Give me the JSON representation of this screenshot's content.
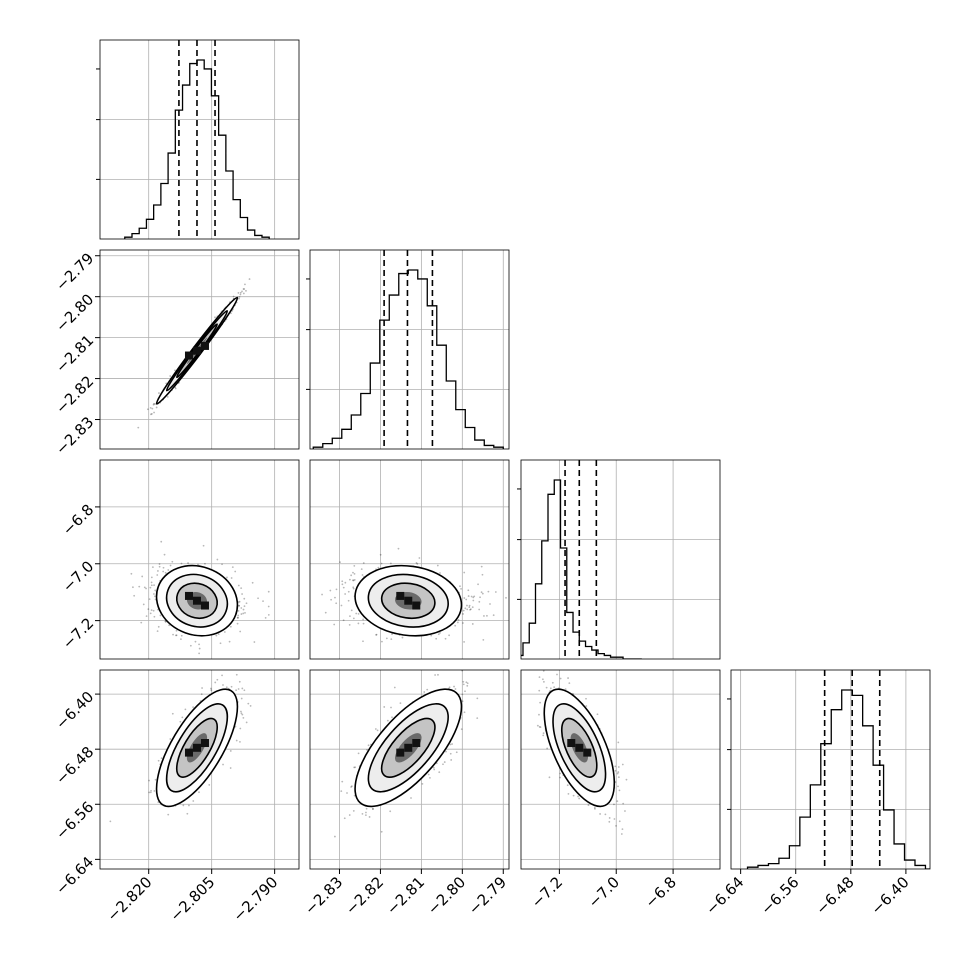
{
  "chart_data": {
    "type": "corner",
    "parameters": [
      {
        "id": "p0",
        "range": [
          -2.8316,
          -2.7842
        ],
        "ticks": [
          -2.82,
          -2.805,
          -2.79
        ],
        "tick_labels": [
          "−2.820",
          "−2.805",
          "−2.790"
        ],
        "quantiles": [
          -2.8128,
          -2.8085,
          -2.8042
        ],
        "mean": -2.8085,
        "sd": 0.0043
      },
      {
        "id": "p1",
        "range": [
          -2.8372,
          -2.7886
        ],
        "ticks": [
          -2.83,
          -2.82,
          -2.81,
          -2.8,
          -2.79
        ],
        "tick_labels": [
          "−2.83",
          "−2.82",
          "−2.81",
          "−2.80",
          "−2.79"
        ],
        "quantiles": [
          -2.8191,
          -2.8134,
          -2.8073
        ],
        "mean": -2.8132,
        "sd": 0.0058
      },
      {
        "id": "p2",
        "range": [
          -7.335,
          -6.635
        ],
        "ticks": [
          -7.2,
          -7.0,
          -6.8
        ],
        "tick_labels": [
          "−7.2",
          "−7.0",
          "−6.8"
        ],
        "quantiles": [
          -7.18,
          -7.13,
          -7.07
        ],
        "mean": -7.13,
        "sd": 0.055
      },
      {
        "id": "p3",
        "range": [
          -6.654,
          -6.365
        ],
        "ticks": [
          -6.64,
          -6.56,
          -6.48,
          -6.4
        ],
        "tick_labels": [
          "−6.64",
          "−6.56",
          "−6.48",
          "−6.40"
        ],
        "quantiles": [
          -6.518,
          -6.478,
          -6.438
        ],
        "mean": -6.478,
        "sd": 0.038
      }
    ],
    "diagonal_histograms": [
      {
        "param": "p0",
        "counts": [
          1,
          3,
          6,
          11,
          19,
          31,
          48,
          72,
          86,
          98,
          100,
          95,
          80,
          58,
          38,
          22,
          12,
          5,
          2,
          1
        ]
      },
      {
        "param": "p1",
        "counts": [
          1,
          3,
          6,
          11,
          19,
          31,
          48,
          72,
          86,
          98,
          100,
          95,
          80,
          58,
          38,
          22,
          12,
          5,
          2,
          1
        ]
      },
      {
        "param": "p2",
        "counts": [
          2,
          9,
          20,
          42,
          66,
          92,
          100,
          62,
          26,
          15,
          10,
          7,
          5,
          3,
          2,
          1,
          1,
          0,
          0,
          0
        ]
      },
      {
        "param": "p3",
        "counts": [
          1,
          2,
          3,
          6,
          13,
          29,
          47,
          70,
          89,
          100,
          97,
          80,
          58,
          33,
          14,
          5,
          2,
          0,
          0,
          0
        ]
      }
    ],
    "contour_panels": [
      {
        "x": "p0",
        "y": "p1",
        "correlation": 0.99
      },
      {
        "x": "p0",
        "y": "p2",
        "correlation": -0.12
      },
      {
        "x": "p1",
        "y": "p2",
        "correlation": -0.12
      },
      {
        "x": "p0",
        "y": "p3",
        "correlation": 0.7
      },
      {
        "x": "p1",
        "y": "p3",
        "correlation": 0.7
      },
      {
        "x": "p2",
        "y": "p3",
        "correlation": -0.6
      }
    ],
    "contour_levels_sigma": [
      0.5,
      1.0,
      1.5,
      2.0
    ],
    "grid": true,
    "colors": {
      "contour": "#000000",
      "points": "#000000",
      "grid": "#b0b0b0"
    }
  }
}
